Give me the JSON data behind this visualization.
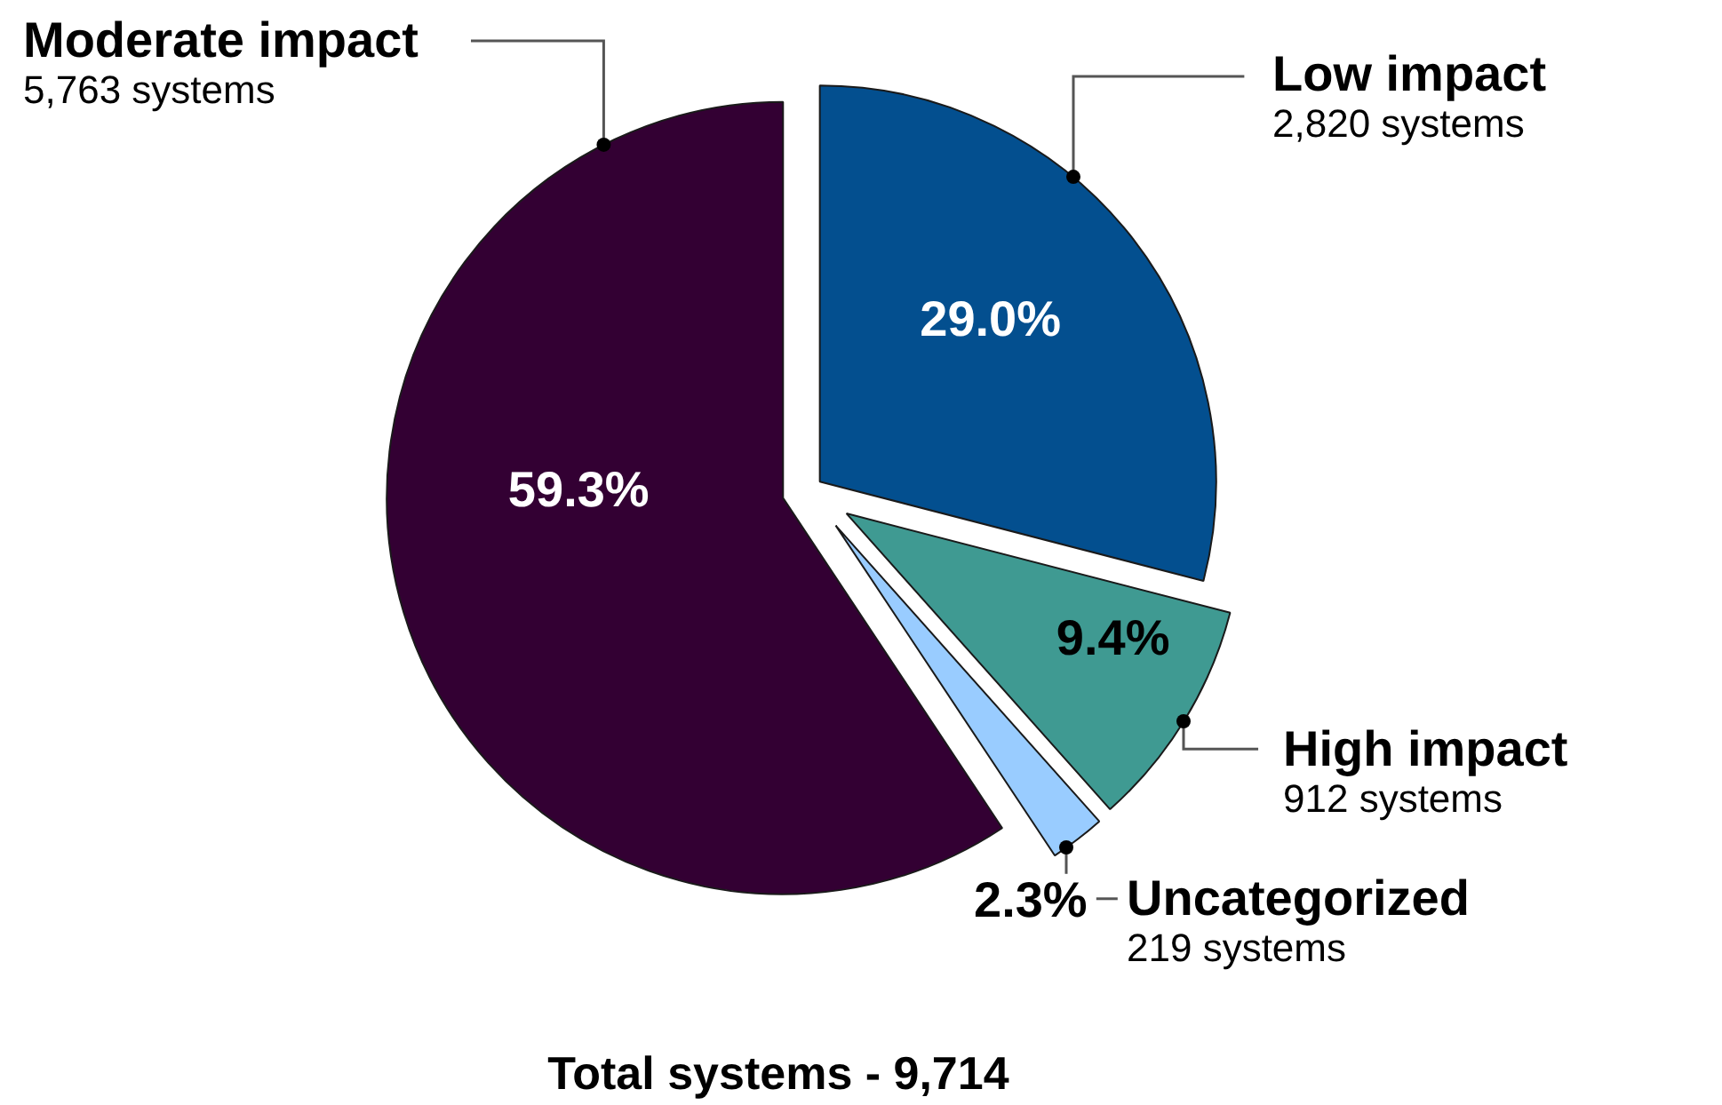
{
  "chart_data": {
    "type": "pie",
    "categories": [
      "Low impact",
      "High impact",
      "Uncategorized",
      "Moderate impact"
    ],
    "values": [
      2820,
      912,
      219,
      5763
    ],
    "colors": [
      "#034f8f",
      "#3f9a92",
      "#99ccff",
      "#330033"
    ],
    "value_labels": [
      "2,820 systems",
      "912 systems",
      "219 systems",
      "5,763 systems"
    ],
    "annotations": [
      {
        "text": "29.0%",
        "x": "Low impact"
      },
      {
        "text": "9.4%",
        "x": "High impact"
      },
      {
        "text": "2.3%",
        "x": "Uncategorized"
      },
      {
        "text": "59.3%",
        "x": "Moderate impact"
      },
      "Total systems - 9,714"
    ]
  }
}
